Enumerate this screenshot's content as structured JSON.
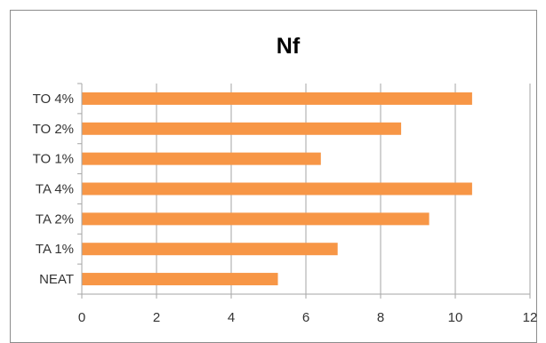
{
  "chart_data": {
    "type": "bar",
    "orientation": "horizontal",
    "title": "Nf",
    "categories": [
      "NEAT",
      "TA 1%",
      "TA 2%",
      "TA 4%",
      "TO 1%",
      "TO 2%",
      "TO 4%"
    ],
    "values": [
      5.25,
      6.85,
      9.3,
      10.45,
      6.4,
      8.55,
      10.45
    ],
    "xlim": [
      0,
      12
    ],
    "xticks": [
      "0",
      "2",
      "4",
      "6",
      "8",
      "10",
      "12"
    ],
    "grid": true,
    "legend": "none",
    "bar_color": "#F79646"
  }
}
